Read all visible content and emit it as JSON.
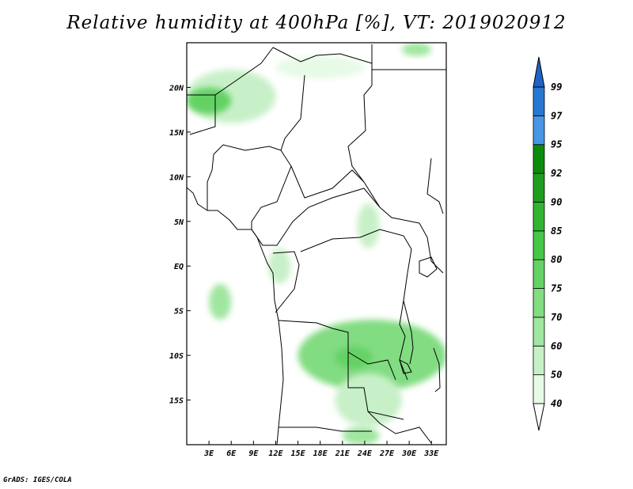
{
  "title": "Relative humidity at 400hPa [%], VT: 2019020912",
  "footer": "GrADS: IGES/COLA",
  "map": {
    "lon_range": [
      0,
      35
    ],
    "lat_range": [
      -20,
      25
    ],
    "lon_ticks": [
      {
        "value": 3,
        "label": "3E"
      },
      {
        "value": 6,
        "label": "6E"
      },
      {
        "value": 9,
        "label": "9E"
      },
      {
        "value": 12,
        "label": "12E"
      },
      {
        "value": 15,
        "label": "15E"
      },
      {
        "value": 18,
        "label": "18E"
      },
      {
        "value": 21,
        "label": "21E"
      },
      {
        "value": 24,
        "label": "24E"
      },
      {
        "value": 27,
        "label": "27E"
      },
      {
        "value": 30,
        "label": "30E"
      },
      {
        "value": 33,
        "label": "33E"
      }
    ],
    "lat_ticks": [
      {
        "value": 20,
        "label": "20N"
      },
      {
        "value": 15,
        "label": "15N"
      },
      {
        "value": 10,
        "label": "10N"
      },
      {
        "value": 5,
        "label": "5N"
      },
      {
        "value": 0,
        "label": "EQ"
      },
      {
        "value": -5,
        "label": "5S"
      },
      {
        "value": -10,
        "label": "10S"
      },
      {
        "value": -15,
        "label": "15S"
      }
    ]
  },
  "colorbar": {
    "levels": [
      "40",
      "50",
      "60",
      "70",
      "75",
      "80",
      "85",
      "90",
      "92",
      "95",
      "97",
      "99"
    ],
    "colors": [
      "#e6fae6",
      "#c8f0c8",
      "#a0e6a0",
      "#82dc82",
      "#64d264",
      "#46c846",
      "#32b432",
      "#1e9e1e",
      "#0a8c0a",
      "#4896e6",
      "#2878d2",
      "#1455b4"
    ],
    "below_color": "#ffffff",
    "above_color": "#1e64c8"
  },
  "humidity_areas": [
    {
      "name": "sahel-band-west",
      "level_index": 1,
      "lon": [
        0,
        12
      ],
      "lat": [
        16,
        22
      ]
    },
    {
      "name": "sahel-band-core",
      "level_index": 4,
      "lon": [
        0,
        6
      ],
      "lat": [
        17,
        20
      ]
    },
    {
      "name": "sahel-band-east",
      "level_index": 0,
      "lon": [
        12,
        24
      ],
      "lat": [
        21,
        23.5
      ]
    },
    {
      "name": "northeast-patch",
      "level_index": 2,
      "lon": [
        29,
        33
      ],
      "lat": [
        23.5,
        25
      ]
    },
    {
      "name": "gulf-guinea-patch",
      "level_index": 2,
      "lon": [
        3,
        6
      ],
      "lat": [
        -6,
        -2
      ]
    },
    {
      "name": "central-africa-patch",
      "level_index": 1,
      "lon": [
        23,
        26
      ],
      "lat": [
        2,
        7
      ]
    },
    {
      "name": "gabon-patch",
      "level_index": 1,
      "lon": [
        11,
        14
      ],
      "lat": [
        -2,
        2
      ]
    },
    {
      "name": "southern-congo-band",
      "level_index": 3,
      "lon": [
        15,
        35
      ],
      "lat": [
        -14,
        -6
      ]
    },
    {
      "name": "southern-congo-core",
      "level_index": 4,
      "lon": [
        20,
        25
      ],
      "lat": [
        -11.5,
        -9
      ]
    },
    {
      "name": "angola-zambia-patch",
      "level_index": 1,
      "lon": [
        20,
        29
      ],
      "lat": [
        -18,
        -12
      ]
    },
    {
      "name": "south-patch",
      "level_index": 2,
      "lon": [
        21,
        26
      ],
      "lat": [
        -20,
        -18
      ]
    }
  ]
}
